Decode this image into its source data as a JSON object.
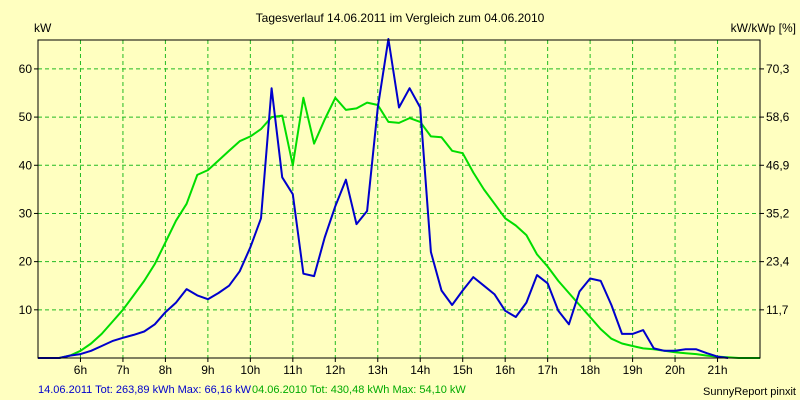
{
  "chart_data": {
    "type": "line",
    "title": "Tagesverlauf 14.06.2011 im Vergleich zum 04.06.2010",
    "ylabel_left": "kW",
    "ylabel_right": "kW/kWp [%]",
    "ylim": [
      0,
      66
    ],
    "yticks_left": [
      "10",
      "20",
      "30",
      "40",
      "50",
      "60"
    ],
    "yticks_right": [
      "11,7",
      "23,4",
      "35,2",
      "46,9",
      "58,6",
      "70,3"
    ],
    "xlim": [
      5.0,
      22.0
    ],
    "xticks": [
      "6h",
      "7h",
      "8h",
      "9h",
      "10h",
      "11h",
      "12h",
      "13h",
      "14h",
      "15h",
      "16h",
      "17h",
      "18h",
      "19h",
      "20h",
      "21h"
    ],
    "grid": true,
    "colors": {
      "background": "#ffffc0",
      "grid": "#22bb22",
      "series_2011": "#0000cc",
      "series_2010": "#00dd00"
    },
    "series": [
      {
        "key": "s2011",
        "color": "#0000cc",
        "x": [
          5.0,
          5.5,
          5.75,
          6.0,
          6.25,
          6.5,
          6.75,
          7.0,
          7.25,
          7.5,
          7.75,
          8.0,
          8.25,
          8.5,
          8.75,
          9.0,
          9.25,
          9.5,
          9.75,
          10.0,
          10.25,
          10.5,
          10.75,
          11.0,
          11.25,
          11.5,
          11.75,
          12.0,
          12.25,
          12.5,
          12.75,
          13.0,
          13.25,
          13.5,
          13.75,
          14.0,
          14.25,
          14.5,
          14.75,
          15.0,
          15.25,
          15.5,
          15.75,
          16.0,
          16.25,
          16.5,
          16.75,
          17.0,
          17.25,
          17.5,
          17.75,
          18.0,
          18.25,
          18.5,
          18.75,
          19.0,
          19.25,
          19.5,
          19.75,
          20.0,
          20.25,
          20.5,
          20.75,
          21.0,
          21.25
        ],
        "y": [
          0,
          0,
          0.5,
          0.8,
          1.5,
          2.5,
          3.5,
          4.2,
          4.8,
          5.5,
          7.0,
          9.5,
          11.5,
          14.3,
          13.0,
          12.2,
          13.5,
          15.0,
          18.0,
          23.0,
          29.0,
          56.0,
          37.5,
          34.0,
          17.5,
          17.0,
          25.0,
          31.5,
          37.0,
          27.8,
          30.5,
          52.0,
          66.2,
          52.0,
          56.0,
          52.0,
          22.0,
          14.0,
          11.0,
          14.0,
          16.8,
          15.0,
          13.2,
          9.8,
          8.5,
          11.5,
          17.2,
          15.5,
          9.8,
          7.0,
          13.8,
          16.5,
          16.0,
          11.0,
          5.0,
          5.0,
          5.8,
          2.0,
          1.5,
          1.5,
          1.8,
          1.8,
          1.0,
          0.3,
          0
        ]
      },
      {
        "key": "s2010",
        "color": "#00dd00",
        "x": [
          5.0,
          5.5,
          5.75,
          6.0,
          6.25,
          6.5,
          6.75,
          7.0,
          7.25,
          7.5,
          7.75,
          8.0,
          8.25,
          8.5,
          8.75,
          9.0,
          9.25,
          9.5,
          9.75,
          10.0,
          10.25,
          10.5,
          10.75,
          11.0,
          11.25,
          11.5,
          11.75,
          12.0,
          12.25,
          12.5,
          12.75,
          13.0,
          13.25,
          13.5,
          13.75,
          14.0,
          14.25,
          14.5,
          14.75,
          15.0,
          15.25,
          15.5,
          15.75,
          16.0,
          16.25,
          16.5,
          16.75,
          17.0,
          17.25,
          17.5,
          17.75,
          18.0,
          18.25,
          18.5,
          18.75,
          19.0,
          19.25,
          19.5,
          19.75,
          20.0,
          20.25,
          20.5,
          20.75,
          21.0,
          21.5,
          22.0
        ],
        "y": [
          0,
          0,
          0.5,
          1.5,
          3.0,
          5.0,
          7.5,
          10.0,
          13.0,
          16.0,
          19.5,
          24.0,
          28.5,
          32.0,
          38.0,
          39.0,
          41.0,
          43.0,
          45.0,
          46.0,
          47.5,
          50.0,
          50.3,
          40.0,
          54.0,
          44.5,
          49.5,
          54.0,
          51.5,
          51.8,
          53.0,
          52.5,
          49.0,
          48.8,
          49.8,
          49.0,
          46.0,
          45.8,
          43.0,
          42.5,
          38.5,
          35.0,
          32.0,
          29.0,
          27.5,
          25.5,
          21.5,
          19.0,
          16.0,
          13.5,
          11.0,
          8.5,
          6.0,
          4.0,
          3.0,
          2.5,
          2.0,
          1.8,
          1.5,
          1.2,
          1.0,
          0.8,
          0.5,
          0.3,
          0,
          0
        ]
      }
    ]
  },
  "footer": {
    "series_2011_text": "14.06.2011 Tot: 263,89 kWh Max: 66,16 kW",
    "series_2010_text": "04.06.2010 Tot: 430,48 kWh Max: 54,10 kW",
    "credit": "SunnyReport pinxit"
  }
}
